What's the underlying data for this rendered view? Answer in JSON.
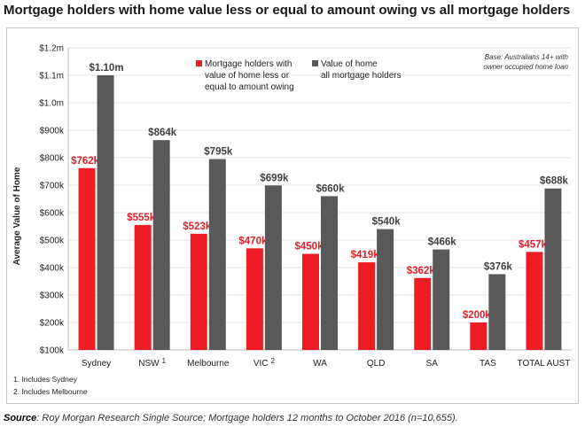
{
  "title": "Mortgage holders with home value less or equal to amount owing vs all mortgage holders",
  "source_label": "Source",
  "source_text": ": Roy Morgan Research Single Source; Mortgage holders 12 months to October 2016 (n=10,655).",
  "base_note": [
    "Base: Australians 14+ with",
    "owner occupied home loan"
  ],
  "footnotes": [
    "1. Includes Sydney",
    "2. Includes Melbourne"
  ],
  "colors": {
    "red": "#ee1c25",
    "gray": "#595959",
    "red_label": "#e0202a",
    "gray_label": "#404040"
  },
  "chart_data": {
    "type": "bar",
    "title": "Mortgage holders with home value less or equal to amount owing vs all mortgage holders",
    "xlabel": "",
    "ylabel": "Average Value of Home",
    "ylim": [
      100,
      1200
    ],
    "yticks": [
      100,
      200,
      300,
      400,
      500,
      600,
      700,
      800,
      900,
      1000,
      1100,
      1200
    ],
    "ytick_labels": [
      "$100k",
      "$200k",
      "$300k",
      "$400k",
      "$500k",
      "$600k",
      "$700k",
      "$800k",
      "$900k",
      "$1.0m",
      "$1.1m",
      "$1.2m"
    ],
    "categories": [
      "Sydney",
      "NSW",
      "Melbourne",
      "VIC",
      "WA",
      "QLD",
      "SA",
      "TAS",
      "TOTAL AUST"
    ],
    "category_superscripts": [
      "",
      "1",
      "",
      "2",
      "",
      "",
      "",
      "",
      ""
    ],
    "legend_position": "top-center",
    "series": [
      {
        "name": "Mortgage holders with value of home less or equal to amount owing",
        "legend_lines": [
          "Mortgage holders with",
          "value of home less or",
          "equal to amount owing"
        ],
        "values": [
          762,
          555,
          523,
          470,
          450,
          419,
          362,
          200,
          457
        ],
        "labels": [
          "$762k",
          "$555k",
          "$523k",
          "$470k",
          "$450k",
          "$419k",
          "$362k",
          "$200k",
          "$457k"
        ]
      },
      {
        "name": "Value of home all mortgage holders",
        "legend_lines": [
          "Value of home",
          "all mortgage holders"
        ],
        "values": [
          1100,
          864,
          795,
          699,
          660,
          540,
          466,
          376,
          688
        ],
        "labels": [
          "$1.10m",
          "$864k",
          "$795k",
          "$699k",
          "$660k",
          "$540k",
          "$466k",
          "$376k",
          "$688k"
        ]
      }
    ]
  }
}
